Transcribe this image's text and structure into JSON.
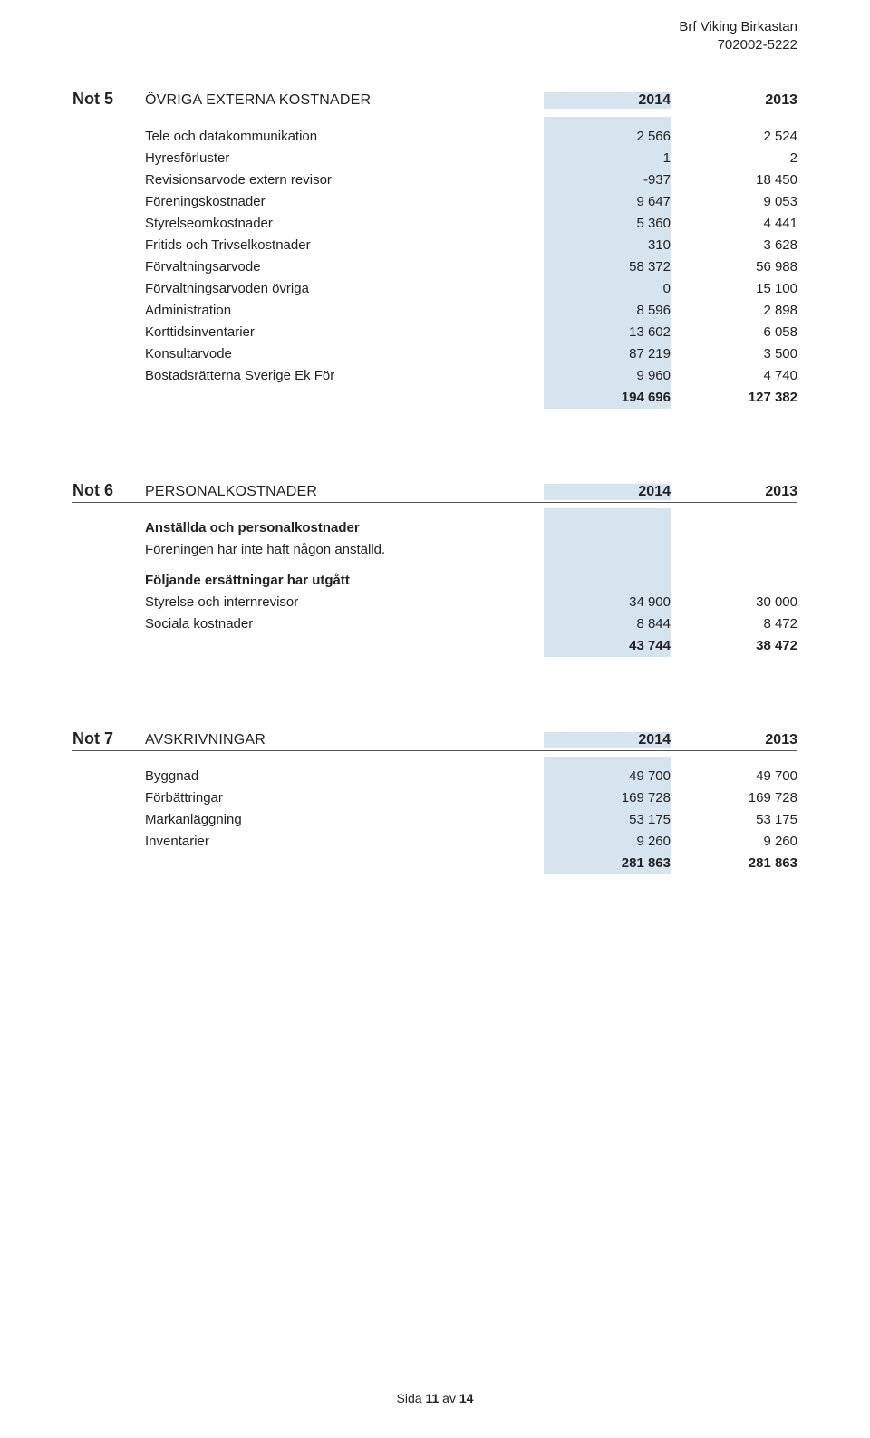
{
  "colors": {
    "highlight_bg": "#d6e4f0",
    "text": "#222222",
    "page_bg": "#ffffff",
    "rule": "#555555"
  },
  "font": {
    "family": "Segoe UI / Helvetica Neue / Arial",
    "base_size_pt": 11
  },
  "header": {
    "company": "Brf Viking Birkastan",
    "orgnr": "702002-5222"
  },
  "notes": [
    {
      "num": "Not 5",
      "title": "ÖVRIGA EXTERNA KOSTNADER",
      "year1": "2014",
      "year2": "2013",
      "rows": [
        {
          "label": "Tele och datakommunikation",
          "v1": "2 566",
          "v2": "2 524"
        },
        {
          "label": "Hyresförluster",
          "v1": "1",
          "v2": "2"
        },
        {
          "label": "Revisionsarvode extern revisor",
          "v1": "-937",
          "v2": "18 450"
        },
        {
          "label": "Föreningskostnader",
          "v1": "9 647",
          "v2": "9 053"
        },
        {
          "label": "Styrelseomkostnader",
          "v1": "5 360",
          "v2": "4 441"
        },
        {
          "label": "Fritids och Trivselkostnader",
          "v1": "310",
          "v2": "3 628"
        },
        {
          "label": "Förvaltningsarvode",
          "v1": "58 372",
          "v2": "56 988"
        },
        {
          "label": "Förvaltningsarvoden övriga",
          "v1": "0",
          "v2": "15 100"
        },
        {
          "label": "Administration",
          "v1": "8 596",
          "v2": "2 898"
        },
        {
          "label": "Korttidsinventarier",
          "v1": "13 602",
          "v2": "6 058"
        },
        {
          "label": "Konsultarvode",
          "v1": "87 219",
          "v2": "3 500"
        },
        {
          "label": "Bostadsrätterna Sverige Ek För",
          "v1": "9 960",
          "v2": "4 740"
        }
      ],
      "total": {
        "label": "",
        "v1": "194 696",
        "v2": "127 382"
      }
    },
    {
      "num": "Not 6",
      "title": "PERSONALKOSTNADER",
      "year1": "2014",
      "year2": "2013",
      "sub1_heading": "Anställda och personalkostnader",
      "sub1_text": "Föreningen har inte haft någon anställd.",
      "sub2_heading": "Följande ersättningar har utgått",
      "rows": [
        {
          "label": "Styrelse och internrevisor",
          "v1": "34 900",
          "v2": "30 000"
        },
        {
          "label": "Sociala kostnader",
          "v1": "8 844",
          "v2": "8 472"
        }
      ],
      "total": {
        "label": "",
        "v1": "43 744",
        "v2": "38 472"
      }
    },
    {
      "num": "Not 7",
      "title": "AVSKRIVNINGAR",
      "year1": "2014",
      "year2": "2013",
      "rows": [
        {
          "label": "Byggnad",
          "v1": "49 700",
          "v2": "49 700"
        },
        {
          "label": "Förbättringar",
          "v1": "169 728",
          "v2": "169 728"
        },
        {
          "label": "Markanläggning",
          "v1": "53 175",
          "v2": "53 175"
        },
        {
          "label": "Inventarier",
          "v1": "9 260",
          "v2": "9 260"
        }
      ],
      "total": {
        "label": "",
        "v1": "281 863",
        "v2": "281 863"
      }
    }
  ],
  "footer": {
    "prefix": "Sida ",
    "page": "11",
    "mid": " av ",
    "total": "14"
  }
}
